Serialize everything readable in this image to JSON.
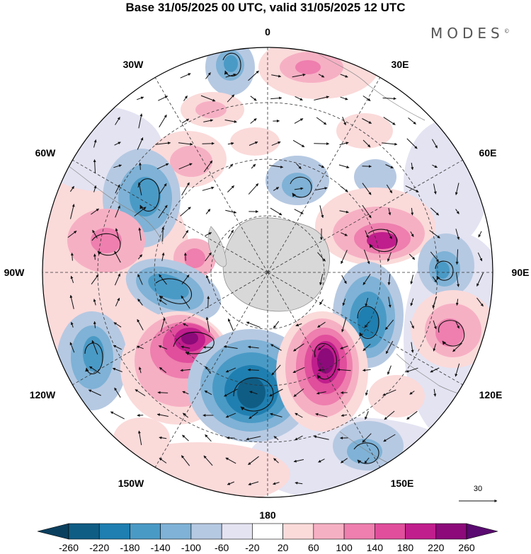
{
  "title": "Base 31/05/2025 00 UTC, valid 31/05/2025 12 UTC",
  "brand": "MODES",
  "brand_mark": "©",
  "lon_labels": {
    "0": "0",
    "30E": "30E",
    "60E": "60E",
    "90E": "90E",
    "120E": "120E",
    "150E": "150E",
    "180": "180",
    "150W": "150W",
    "120W": "120W",
    "90W": "90W",
    "60W": "60W",
    "30W": "30W"
  },
  "vector_reference": "30",
  "colorbar": {
    "ticks": [
      "-260",
      "-220",
      "-180",
      "-140",
      "-100",
      "-60",
      "-20",
      "20",
      "60",
      "100",
      "140",
      "180",
      "220",
      "260"
    ],
    "colors": [
      "#0b3f5e",
      "#0f5d85",
      "#1f7fb0",
      "#4a9ac6",
      "#7fb2d6",
      "#b6c9e2",
      "#e3e3f2",
      "#ffffff",
      "#fbdada",
      "#f6b0c4",
      "#ee7fae",
      "#e04e9c",
      "#c01e8c",
      "#8c0a7a",
      "#5a0a70"
    ]
  },
  "map_fields": {
    "positive_centers_lonlat": [
      [
        "30E",
        "55S"
      ],
      [
        "80E",
        "62S"
      ],
      [
        "100E",
        "45S"
      ],
      [
        "165E",
        "62S"
      ],
      [
        "140W",
        "60S"
      ],
      [
        "95W",
        "68S"
      ],
      [
        "100W",
        "45S"
      ]
    ],
    "negative_centers_lonlat": [
      [
        "170W",
        "60S"
      ],
      [
        "125E",
        "65S"
      ],
      [
        "90E",
        "45S"
      ],
      [
        "115W",
        "62S"
      ],
      [
        "60W",
        "58S"
      ],
      [
        "20W",
        "45S"
      ]
    ]
  }
}
